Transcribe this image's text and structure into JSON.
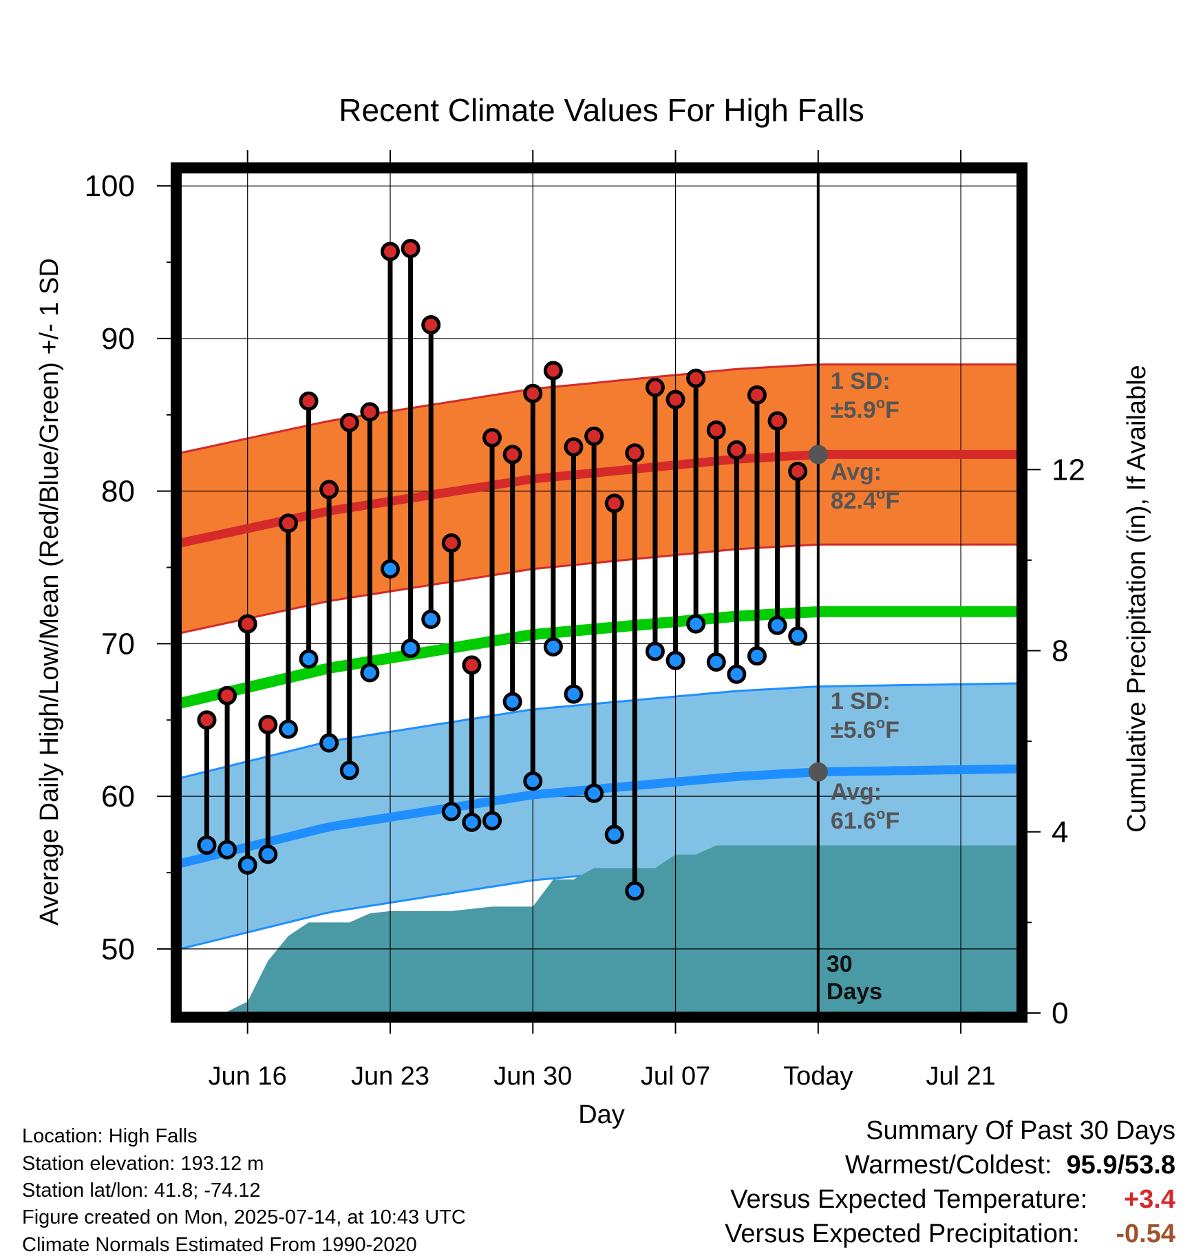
{
  "chart_data": {
    "type": "line",
    "title": "Recent Climate Values For High Falls",
    "xlabel": "Day",
    "ylabel": "Average Daily High/Low/Mean (Red/Blue/Green) +/- 1 SD",
    "y2label": "Cumulative Precipitation (in), If Available",
    "x_tick_labels": [
      "Jun 16",
      "Jun 23",
      "Jun 30",
      "Jul 07",
      "Today",
      "Jul 21"
    ],
    "x_tick_days": [
      16,
      23,
      30,
      37,
      44,
      51
    ],
    "x_range_days": [
      12.7,
      53.8
    ],
    "ylim": [
      45.8,
      101
    ],
    "y_ticks": [
      50,
      60,
      70,
      80,
      90,
      100
    ],
    "y2lim": [
      0,
      18.6
    ],
    "y2_ticks": [
      0,
      4,
      8,
      12
    ],
    "today_day": 44,
    "period_label": [
      "30",
      "Days"
    ],
    "colors": {
      "high": "#d42a2a",
      "low": "#1f8fff",
      "mean": "#00cc00",
      "high_band": "#f47c30",
      "low_band": "#82c1e6",
      "precip": "#4a9aa5",
      "normal_marker": "#555555"
    },
    "daily": {
      "days": [
        14,
        15,
        16,
        17,
        18,
        19,
        20,
        21,
        22,
        23,
        24,
        25,
        26,
        27,
        28,
        29,
        30,
        31,
        32,
        33,
        34,
        35,
        36,
        37,
        38,
        39,
        40,
        41,
        42,
        43
      ],
      "highs": [
        65.0,
        66.6,
        71.3,
        64.7,
        77.9,
        85.9,
        80.1,
        84.5,
        85.2,
        95.7,
        95.9,
        90.9,
        76.6,
        68.6,
        83.5,
        82.4,
        86.4,
        87.9,
        82.9,
        83.6,
        79.2,
        82.5,
        86.8,
        86.0,
        87.4,
        84.0,
        82.7,
        86.3,
        84.6,
        81.3
      ],
      "lows": [
        56.8,
        56.5,
        55.5,
        56.2,
        64.4,
        69.0,
        63.5,
        61.7,
        68.1,
        74.9,
        69.7,
        71.6,
        59.0,
        58.3,
        58.4,
        66.2,
        61.0,
        69.8,
        66.7,
        60.2,
        57.5,
        53.8,
        69.5,
        68.9,
        71.3,
        68.8,
        68.0,
        69.2,
        71.2,
        70.5
      ]
    },
    "normals": {
      "days": [
        12.7,
        20,
        30,
        40,
        44,
        53.8
      ],
      "high_avg": [
        76.6,
        78.7,
        80.8,
        82.1,
        82.4,
        82.4
      ],
      "high_sd": 5.9,
      "low_avg": [
        55.6,
        58.0,
        60.1,
        61.3,
        61.6,
        61.8
      ],
      "low_sd": 5.6,
      "mean_avg": [
        66.1,
        68.4,
        70.6,
        71.8,
        72.1,
        72.1
      ]
    },
    "precipitation": {
      "days": [
        12.7,
        14,
        15,
        16,
        17,
        18,
        19,
        20,
        21,
        22,
        23,
        24,
        25,
        26,
        27,
        28,
        29,
        30,
        31,
        32,
        33,
        34,
        35,
        36,
        37,
        38,
        39,
        40,
        41,
        42,
        43,
        44,
        53.8
      ],
      "cum": [
        0.0,
        0.0,
        0.03,
        0.25,
        1.15,
        1.7,
        2.0,
        2.0,
        2.0,
        2.2,
        2.25,
        2.25,
        2.25,
        2.25,
        2.3,
        2.35,
        2.35,
        2.35,
        2.95,
        2.95,
        3.2,
        3.2,
        3.2,
        3.2,
        3.5,
        3.5,
        3.7,
        3.7,
        3.7,
        3.7,
        3.7,
        3.7,
        3.7
      ]
    },
    "annotations": {
      "high_sd_label": "1 SD:",
      "high_sd_value": "±5.9",
      "high_avg_label": "Avg:",
      "high_avg_value": "82.4",
      "low_sd_label": "1 SD:",
      "low_sd_value": "±5.6",
      "low_avg_label": "Avg:",
      "low_avg_value": "61.6",
      "degree_symbol": "o",
      "unit": "F"
    }
  },
  "info": {
    "location": "Location: High Falls",
    "elevation": "Station elevation: 193.12 m",
    "latlon": "Station lat/lon: 41.8; -74.12",
    "created": "Figure created on Mon, 2025-07-14, at 10:43 UTC",
    "normals": "Climate Normals Estimated From 1990-2020"
  },
  "summary": {
    "heading": "Summary Of Past 30 Days",
    "warm_cold_label": "Warmest/Coldest:",
    "warm_cold_value": "95.9/53.8",
    "temp_label": "Versus Expected Temperature:",
    "temp_value": "+3.4",
    "temp_color": "#d42a2a",
    "precip_label": "Versus Expected Precipitation:",
    "precip_value": "-0.54",
    "precip_color": "#a0522d"
  }
}
